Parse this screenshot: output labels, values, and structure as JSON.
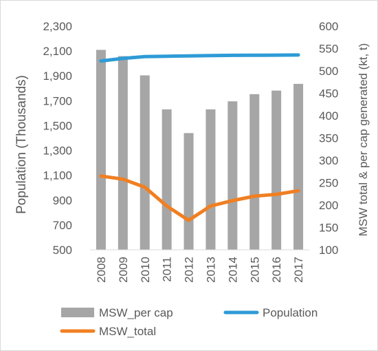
{
  "chart_data": {
    "type": "bar+line",
    "categories": [
      "2008",
      "2009",
      "2010",
      "2011",
      "2012",
      "2013",
      "2014",
      "2015",
      "2016",
      "2017"
    ],
    "y_left": {
      "label": "Population (Thousands)",
      "lim": [
        500,
        2300
      ],
      "ticks": [
        "2,300",
        "2,100",
        "1,900",
        "1,700",
        "1,500",
        "1,300",
        "1,100",
        "900",
        "700",
        "500"
      ],
      "tick_values": [
        2300,
        2100,
        1900,
        1700,
        1500,
        1300,
        1100,
        900,
        700,
        500
      ]
    },
    "y_right": {
      "label": "MSW total & per cap generated (kt, t)",
      "lim": [
        100,
        600
      ],
      "ticks": [
        "600",
        "550",
        "500",
        "450",
        "400",
        "350",
        "300",
        "250",
        "200",
        "150",
        "100"
      ],
      "tick_values": [
        600,
        550,
        500,
        450,
        400,
        350,
        300,
        250,
        200,
        150,
        100
      ]
    },
    "series": [
      {
        "name": "MSW_per cap",
        "type": "bar",
        "axis": "right",
        "color": "#a6a6a6",
        "values": [
          547,
          533,
          490,
          414,
          361,
          414,
          432,
          448,
          456,
          471
        ]
      },
      {
        "name": "Population",
        "type": "line",
        "axis": "left",
        "color": "#2e9bd6",
        "values": [
          2020,
          2040,
          2055,
          2058,
          2061,
          2063,
          2065,
          2066,
          2067,
          2068
        ]
      },
      {
        "name": "MSW_total",
        "type": "line",
        "axis": "right",
        "color": "#f07f22",
        "values": [
          265,
          258,
          240,
          198,
          166,
          198,
          210,
          220,
          224,
          232
        ]
      }
    ],
    "legend": [
      "MSW_per cap",
      "Population",
      "MSW_total"
    ],
    "legend_position": "bottom",
    "grid": false
  }
}
